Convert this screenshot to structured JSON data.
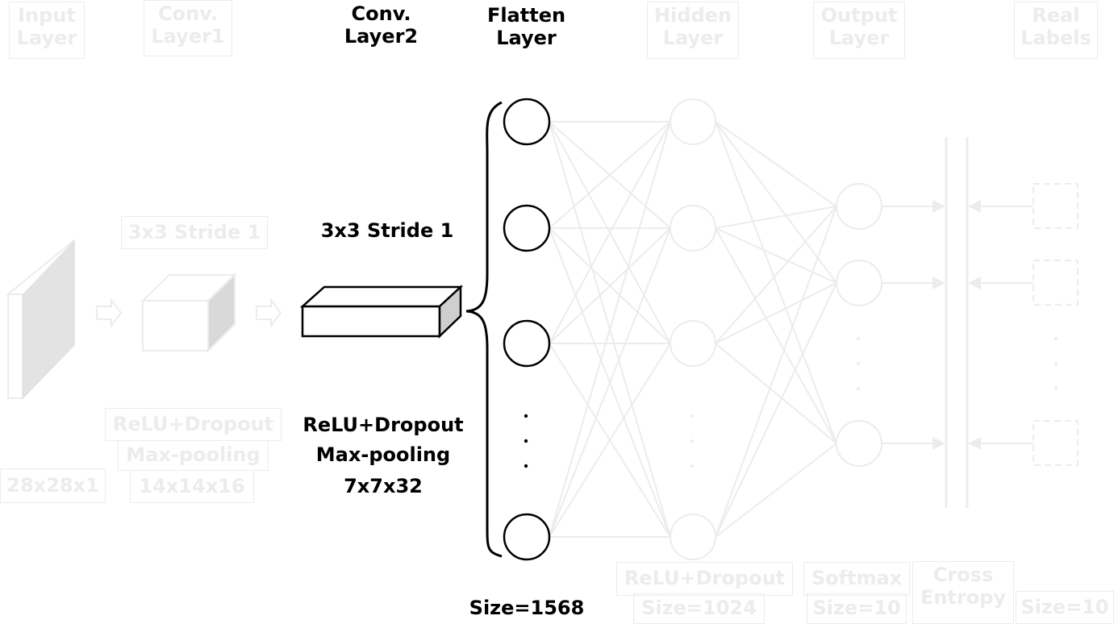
{
  "colors": {
    "active": "#000000",
    "faded": "#ececec",
    "faded_fill": "#d9d9d9",
    "active_fill": "#cfcfcf"
  },
  "headers": {
    "input_layer": [
      "Input",
      "Layer"
    ],
    "conv_layer1": [
      "Conv.",
      "Layer1"
    ],
    "conv_layer2": [
      "Conv.",
      "Layer2"
    ],
    "flatten_layer": [
      "Flatten",
      "Layer"
    ],
    "hidden_layer": [
      "Hidden",
      "Layer"
    ],
    "output_layer": [
      "Output",
      "Layer"
    ],
    "real_labels": [
      "Real",
      "Labels"
    ]
  },
  "conv1": {
    "kernel": "3x3 Stride 1",
    "ops": [
      "ReLU+Dropout",
      "Max-pooling"
    ],
    "size": "14x14x16"
  },
  "input": {
    "size": "28x28x1"
  },
  "conv2": {
    "kernel": "3x3 Stride 1",
    "ops": [
      "ReLU+Dropout",
      "Max-pooling"
    ],
    "size": "7x7x32"
  },
  "flatten": {
    "size": "Size=1568",
    "ellipsis": "·"
  },
  "hidden": {
    "ops": "ReLU+Dropout",
    "size": "Size=1024"
  },
  "output": {
    "ops": "Softmax",
    "size": "Size=10"
  },
  "loss": {
    "label": [
      "Cross",
      "Entropy"
    ]
  },
  "labels": {
    "size": "Size=10"
  }
}
